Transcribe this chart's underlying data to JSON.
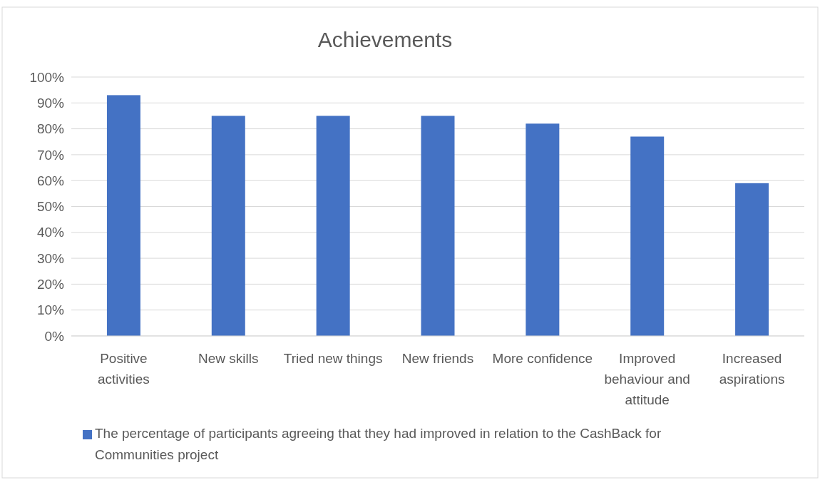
{
  "chart_data": {
    "type": "bar",
    "title": "Achievements",
    "categories": [
      "Positive activities",
      "New skills",
      "Tried new things",
      "New friends",
      "More confidence",
      "Improved behaviour and attitude",
      "Increased aspirations"
    ],
    "series": [
      {
        "name": "The percentage of participants agreeing that they had improved in relation to the CashBack for Communities project",
        "color": "#4472c4",
        "values": [
          93,
          85,
          85,
          85,
          82,
          77,
          59
        ]
      }
    ],
    "ylim": [
      0,
      100
    ],
    "yticks": [
      {
        "value": 0,
        "label": "0%"
      },
      {
        "value": 10,
        "label": "10%"
      },
      {
        "value": 20,
        "label": "20%"
      },
      {
        "value": 30,
        "label": "30%"
      },
      {
        "value": 40,
        "label": "40%"
      },
      {
        "value": 50,
        "label": "50%"
      },
      {
        "value": 60,
        "label": "60%"
      },
      {
        "value": 70,
        "label": "70%"
      },
      {
        "value": 80,
        "label": "80%"
      },
      {
        "value": 90,
        "label": "90%"
      },
      {
        "value": 100,
        "label": "100%"
      }
    ],
    "grid": "y",
    "legend": "bottom left"
  }
}
